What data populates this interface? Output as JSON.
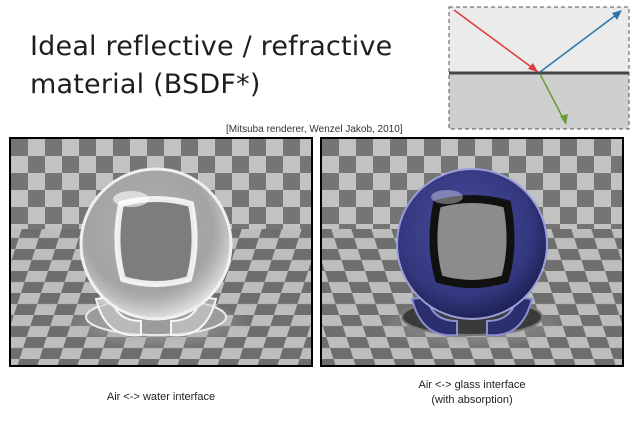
{
  "slide": {
    "title_line1": "Ideal reflective / refractive",
    "title_line2": "material (BSDF*)",
    "citation": "[Mitsuba renderer, Wenzel Jakob, 2010]"
  },
  "diagram": {
    "incident_color": "#e23a3a",
    "reflected_color": "#2e74a8",
    "refracted_color": "#6a9a3a",
    "upper_medium_color": "#ebebeb",
    "lower_medium_color": "#cfcfcf"
  },
  "renders": {
    "left": {
      "tint": "#ffffff"
    },
    "right": {
      "tint": "#3a3f9a"
    }
  },
  "captions": {
    "left": "Air <-> water interface",
    "right_line1": "Air <-> glass interface",
    "right_line2": "(with absorption)"
  }
}
